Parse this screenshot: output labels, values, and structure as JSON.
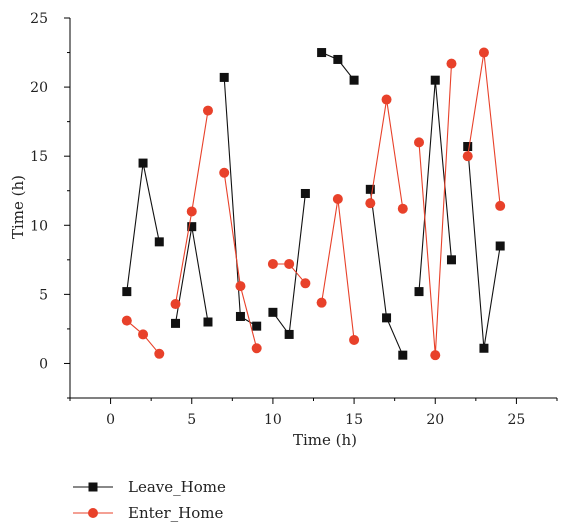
{
  "chart_data": {
    "type": "line",
    "xlabel": "Time (h)",
    "ylabel": "Time (h)",
    "xlim": [
      -2.5,
      27.5
    ],
    "ylim": [
      -2.5,
      25
    ],
    "xticks": [
      0,
      5,
      10,
      15,
      20,
      25
    ],
    "yticks": [
      0,
      5,
      10,
      15,
      20,
      25
    ],
    "grid": false,
    "legend": "bottom-left",
    "series": [
      {
        "name": "Leave_Home",
        "color": "#111111",
        "marker": "square",
        "segments": [
          [
            [
              1,
              5.2
            ],
            [
              2,
              14.5
            ],
            [
              3,
              8.8
            ]
          ],
          [
            [
              4,
              2.9
            ],
            [
              5,
              9.9
            ],
            [
              6,
              3.0
            ]
          ],
          [
            [
              7,
              20.7
            ],
            [
              8,
              3.4
            ],
            [
              9,
              2.7
            ]
          ],
          [
            [
              10,
              3.7
            ],
            [
              11,
              2.1
            ],
            [
              12,
              12.3
            ]
          ],
          [
            [
              13,
              22.5
            ],
            [
              14,
              22.0
            ],
            [
              15,
              20.5
            ]
          ],
          [
            [
              16,
              12.6
            ],
            [
              17,
              3.3
            ],
            [
              18,
              0.6
            ]
          ],
          [
            [
              19,
              5.2
            ],
            [
              20,
              20.5
            ],
            [
              21,
              7.5
            ]
          ],
          [
            [
              22,
              15.7
            ],
            [
              23,
              1.1
            ],
            [
              24,
              8.5
            ]
          ]
        ]
      },
      {
        "name": "Enter_Home",
        "color": "#e8412a",
        "marker": "circle",
        "segments": [
          [
            [
              1,
              3.1
            ],
            [
              2,
              2.1
            ],
            [
              3,
              0.7
            ]
          ],
          [
            [
              4,
              4.3
            ],
            [
              5,
              11.0
            ],
            [
              6,
              18.3
            ]
          ],
          [
            [
              7,
              13.8
            ],
            [
              8,
              5.6
            ],
            [
              9,
              1.1
            ]
          ],
          [
            [
              10,
              7.2
            ],
            [
              11,
              7.2
            ],
            [
              12,
              5.8
            ]
          ],
          [
            [
              13,
              4.4
            ],
            [
              14,
              11.9
            ],
            [
              15,
              1.7
            ]
          ],
          [
            [
              16,
              11.6
            ],
            [
              17,
              19.1
            ],
            [
              18,
              11.2
            ]
          ],
          [
            [
              19,
              16.0
            ],
            [
              20,
              0.6
            ],
            [
              21,
              21.7
            ]
          ],
          [
            [
              22,
              15.0
            ],
            [
              23,
              22.5
            ],
            [
              24,
              11.4
            ]
          ]
        ]
      }
    ]
  }
}
